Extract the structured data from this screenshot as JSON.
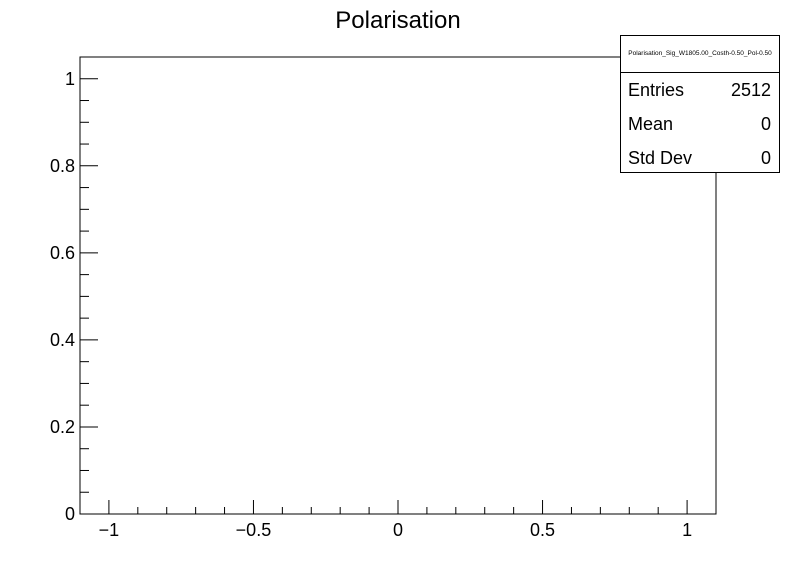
{
  "chart_data": {
    "type": "bar",
    "title": "Polarisation",
    "xlabel": "",
    "ylabel": "",
    "xlim": [
      -1.1,
      1.1
    ],
    "ylim": [
      0,
      1.05
    ],
    "x_ticks": [
      -1,
      -0.5,
      0,
      0.5,
      1
    ],
    "x_tick_labels": [
      "−1",
      "−0.5",
      "0",
      "0.5",
      "1"
    ],
    "y_ticks": [
      0,
      0.2,
      0.4,
      0.6,
      0.8,
      1
    ],
    "y_tick_labels": [
      "0",
      "0.2",
      "0.4",
      "0.6",
      "0.8",
      "1"
    ],
    "values": [],
    "grid": false,
    "legend": "none",
    "stats_box": {
      "position": "top-right",
      "name": "Polarisation_Sig_W1805.00_Costh-0.50_Pol-0.50",
      "rows": [
        {
          "label": "Entries",
          "value": "2512"
        },
        {
          "label": "Mean",
          "value": "0"
        },
        {
          "label": "Std Dev",
          "value": "0"
        }
      ]
    }
  }
}
